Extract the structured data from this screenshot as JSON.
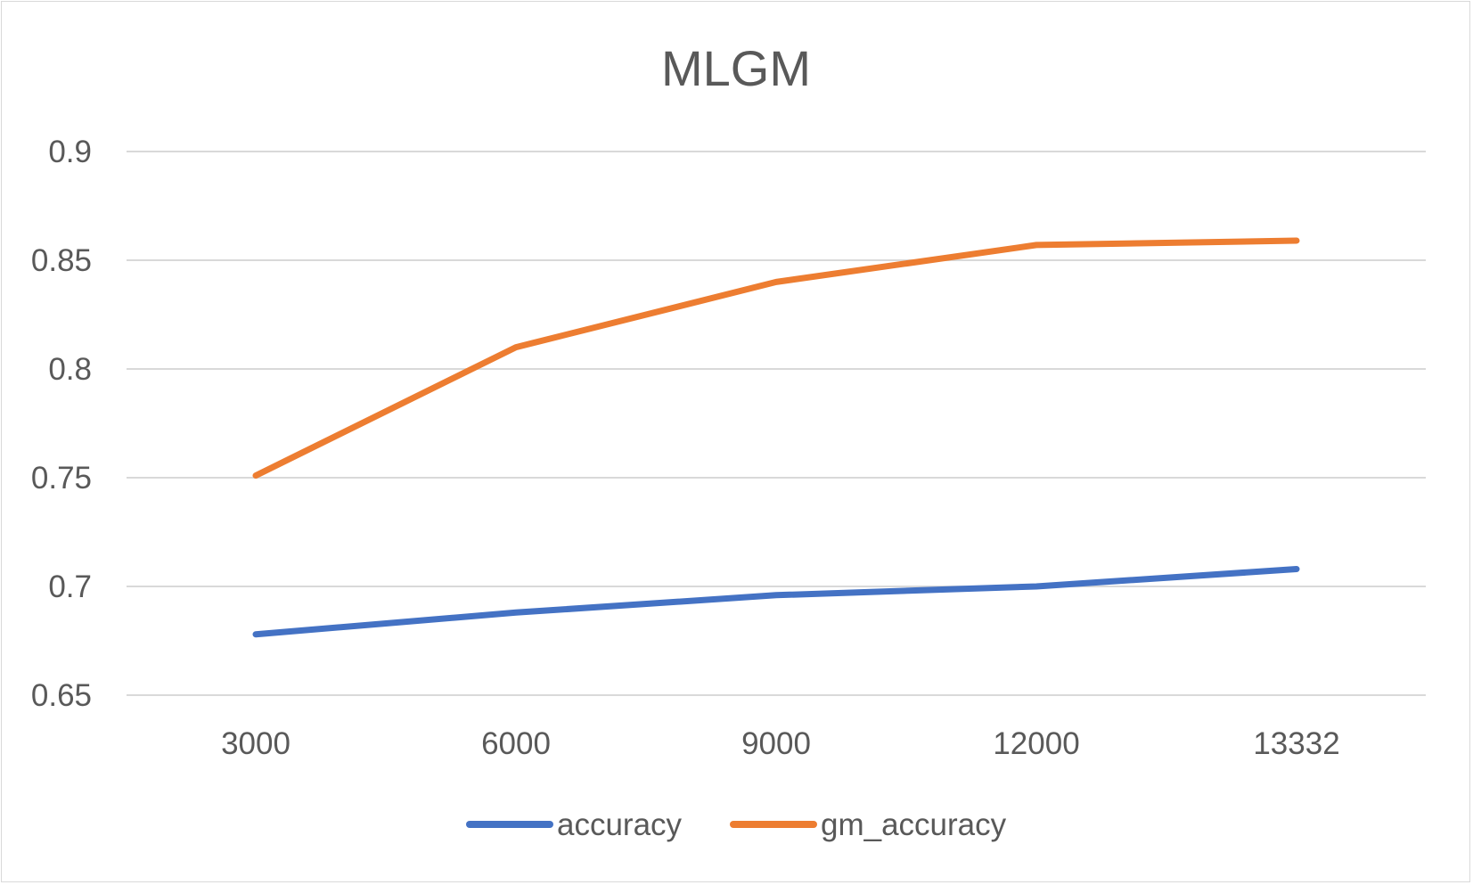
{
  "chart_data": {
    "type": "line",
    "title": "MLGM",
    "xlabel": "",
    "ylabel": "",
    "categories": [
      "3000",
      "6000",
      "9000",
      "12000",
      "13332"
    ],
    "ylim": [
      0.65,
      0.9
    ],
    "yticks": [
      "0.65",
      "0.7",
      "0.75",
      "0.8",
      "0.85",
      "0.9"
    ],
    "grid": "horizontal",
    "legend_position": "bottom",
    "series": [
      {
        "name": "accuracy",
        "color": "#4472c4",
        "values": [
          0.678,
          0.688,
          0.696,
          0.7,
          0.708
        ]
      },
      {
        "name": "gm_accuracy",
        "color": "#ed7d31",
        "values": [
          0.751,
          0.81,
          0.84,
          0.857,
          0.859
        ]
      }
    ]
  }
}
